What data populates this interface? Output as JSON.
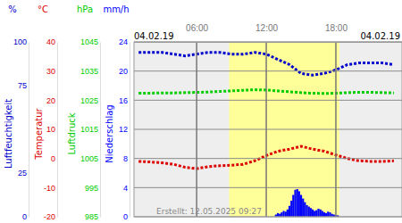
{
  "chart_data": {
    "type": "line",
    "annotations": [
      "04.02.19",
      "04.02.19",
      "Erstellt: 12.05.2025 09:27"
    ],
    "xlim": [
      0.6,
      23.7
    ],
    "xticks": [
      {
        "value": 6,
        "label": "06:00"
      },
      {
        "value": 12,
        "label": "12:00"
      },
      {
        "value": 18,
        "label": "18:00"
      }
    ],
    "grid": true,
    "daylight": [
      8.8,
      18.3
    ],
    "x": [
      1,
      2,
      3,
      4,
      5,
      6,
      7,
      8,
      9,
      10,
      11,
      12,
      13,
      14,
      15,
      16,
      17,
      18,
      19,
      20,
      21,
      22,
      23
    ],
    "series": [
      {
        "name": "Luftfeuchtigkeit",
        "unit": "%",
        "color": "#0000cc",
        "line_style": "dotted",
        "ylim": [
          0,
          100
        ],
        "yticks": [
          0,
          25,
          75,
          100
        ],
        "values": [
          94,
          94,
          94,
          93,
          92,
          93,
          94,
          94,
          93,
          93,
          94,
          93,
          90,
          87,
          82,
          81,
          82,
          84,
          87,
          88,
          88,
          88,
          87
        ]
      },
      {
        "name": "Temperatur",
        "unit": "°C",
        "color": "#dd0000",
        "line_style": "dotted",
        "ylim": [
          -20,
          40
        ],
        "yticks": [
          -20,
          -10,
          0,
          10,
          20,
          30,
          40
        ],
        "values": [
          -1,
          -1.2,
          -1.5,
          -2,
          -3,
          -3.5,
          -2.8,
          -2.5,
          -2.3,
          -2,
          -0.8,
          1,
          2.5,
          3.2,
          4.2,
          3.2,
          2.5,
          1.2,
          0,
          -0.8,
          -1,
          -1,
          -0.8
        ]
      },
      {
        "name": "Luftdruck",
        "unit": "hPa",
        "color": "#00cc00",
        "line_style": "dotted",
        "ylim": [
          985,
          1045
        ],
        "yticks": [
          985,
          995,
          1005,
          1015,
          1025,
          1035,
          1045
        ],
        "values": [
          1027.4,
          1027.4,
          1027.5,
          1027.5,
          1027.6,
          1027.7,
          1027.8,
          1028,
          1028.2,
          1028.4,
          1028.6,
          1028.5,
          1028.2,
          1027.9,
          1027.6,
          1027.4,
          1027.3,
          1027.4,
          1027.6,
          1027.7,
          1027.7,
          1027.6,
          1027.5
        ]
      },
      {
        "name": "Niederschlag",
        "unit": "mm/h",
        "color": "#0000ff",
        "type": "bar",
        "ylim": [
          0,
          24
        ],
        "yticks": [
          0,
          4,
          8,
          12,
          16,
          20,
          24
        ],
        "x": [
          12.83,
          13,
          13.17,
          13.33,
          13.5,
          13.67,
          13.83,
          14,
          14.17,
          14.33,
          14.5,
          14.67,
          14.83,
          15,
          15.17,
          15.33,
          15.5,
          15.67,
          15.83,
          16,
          16.17,
          16.33,
          16.5,
          16.67,
          16.83,
          17,
          17.17,
          17.33,
          17.5,
          17.67,
          17.83,
          18,
          18.17
        ],
        "values": [
          0.3,
          0.5,
          0.4,
          0.6,
          0.8,
          0.7,
          1.0,
          1.5,
          2.2,
          3.0,
          3.7,
          3.8,
          3.5,
          3.0,
          2.5,
          2.0,
          1.6,
          1.4,
          1.2,
          1.0,
          0.8,
          0.9,
          1.1,
          1.0,
          0.8,
          0.6,
          0.5,
          0.7,
          0.6,
          0.4,
          0.3,
          0.2,
          0.2
        ]
      }
    ]
  }
}
